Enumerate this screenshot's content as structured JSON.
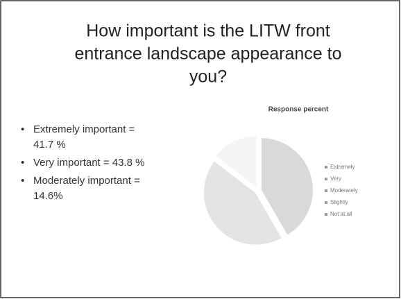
{
  "slide": {
    "title_lines": [
      "How important is the LITW front",
      "entrance landscape appearance to",
      "you?"
    ],
    "bullets": [
      [
        "Extremely important =",
        "41.7 %"
      ],
      [
        "Very important = 43.8 %"
      ],
      [
        "Moderately important =",
        "14.6%"
      ]
    ]
  },
  "chart_data": {
    "type": "pie",
    "title": "Response percent",
    "categories": [
      "Extremely",
      "Very",
      "Moderately",
      "Slightly",
      "Not at all"
    ],
    "values": [
      41.7,
      43.8,
      14.6,
      0,
      0
    ],
    "colors": [
      "#d9d9d9",
      "#e3e3e3",
      "#f4f4f4",
      "#cfcfcf",
      "#ebebeb"
    ],
    "legend": "right"
  }
}
